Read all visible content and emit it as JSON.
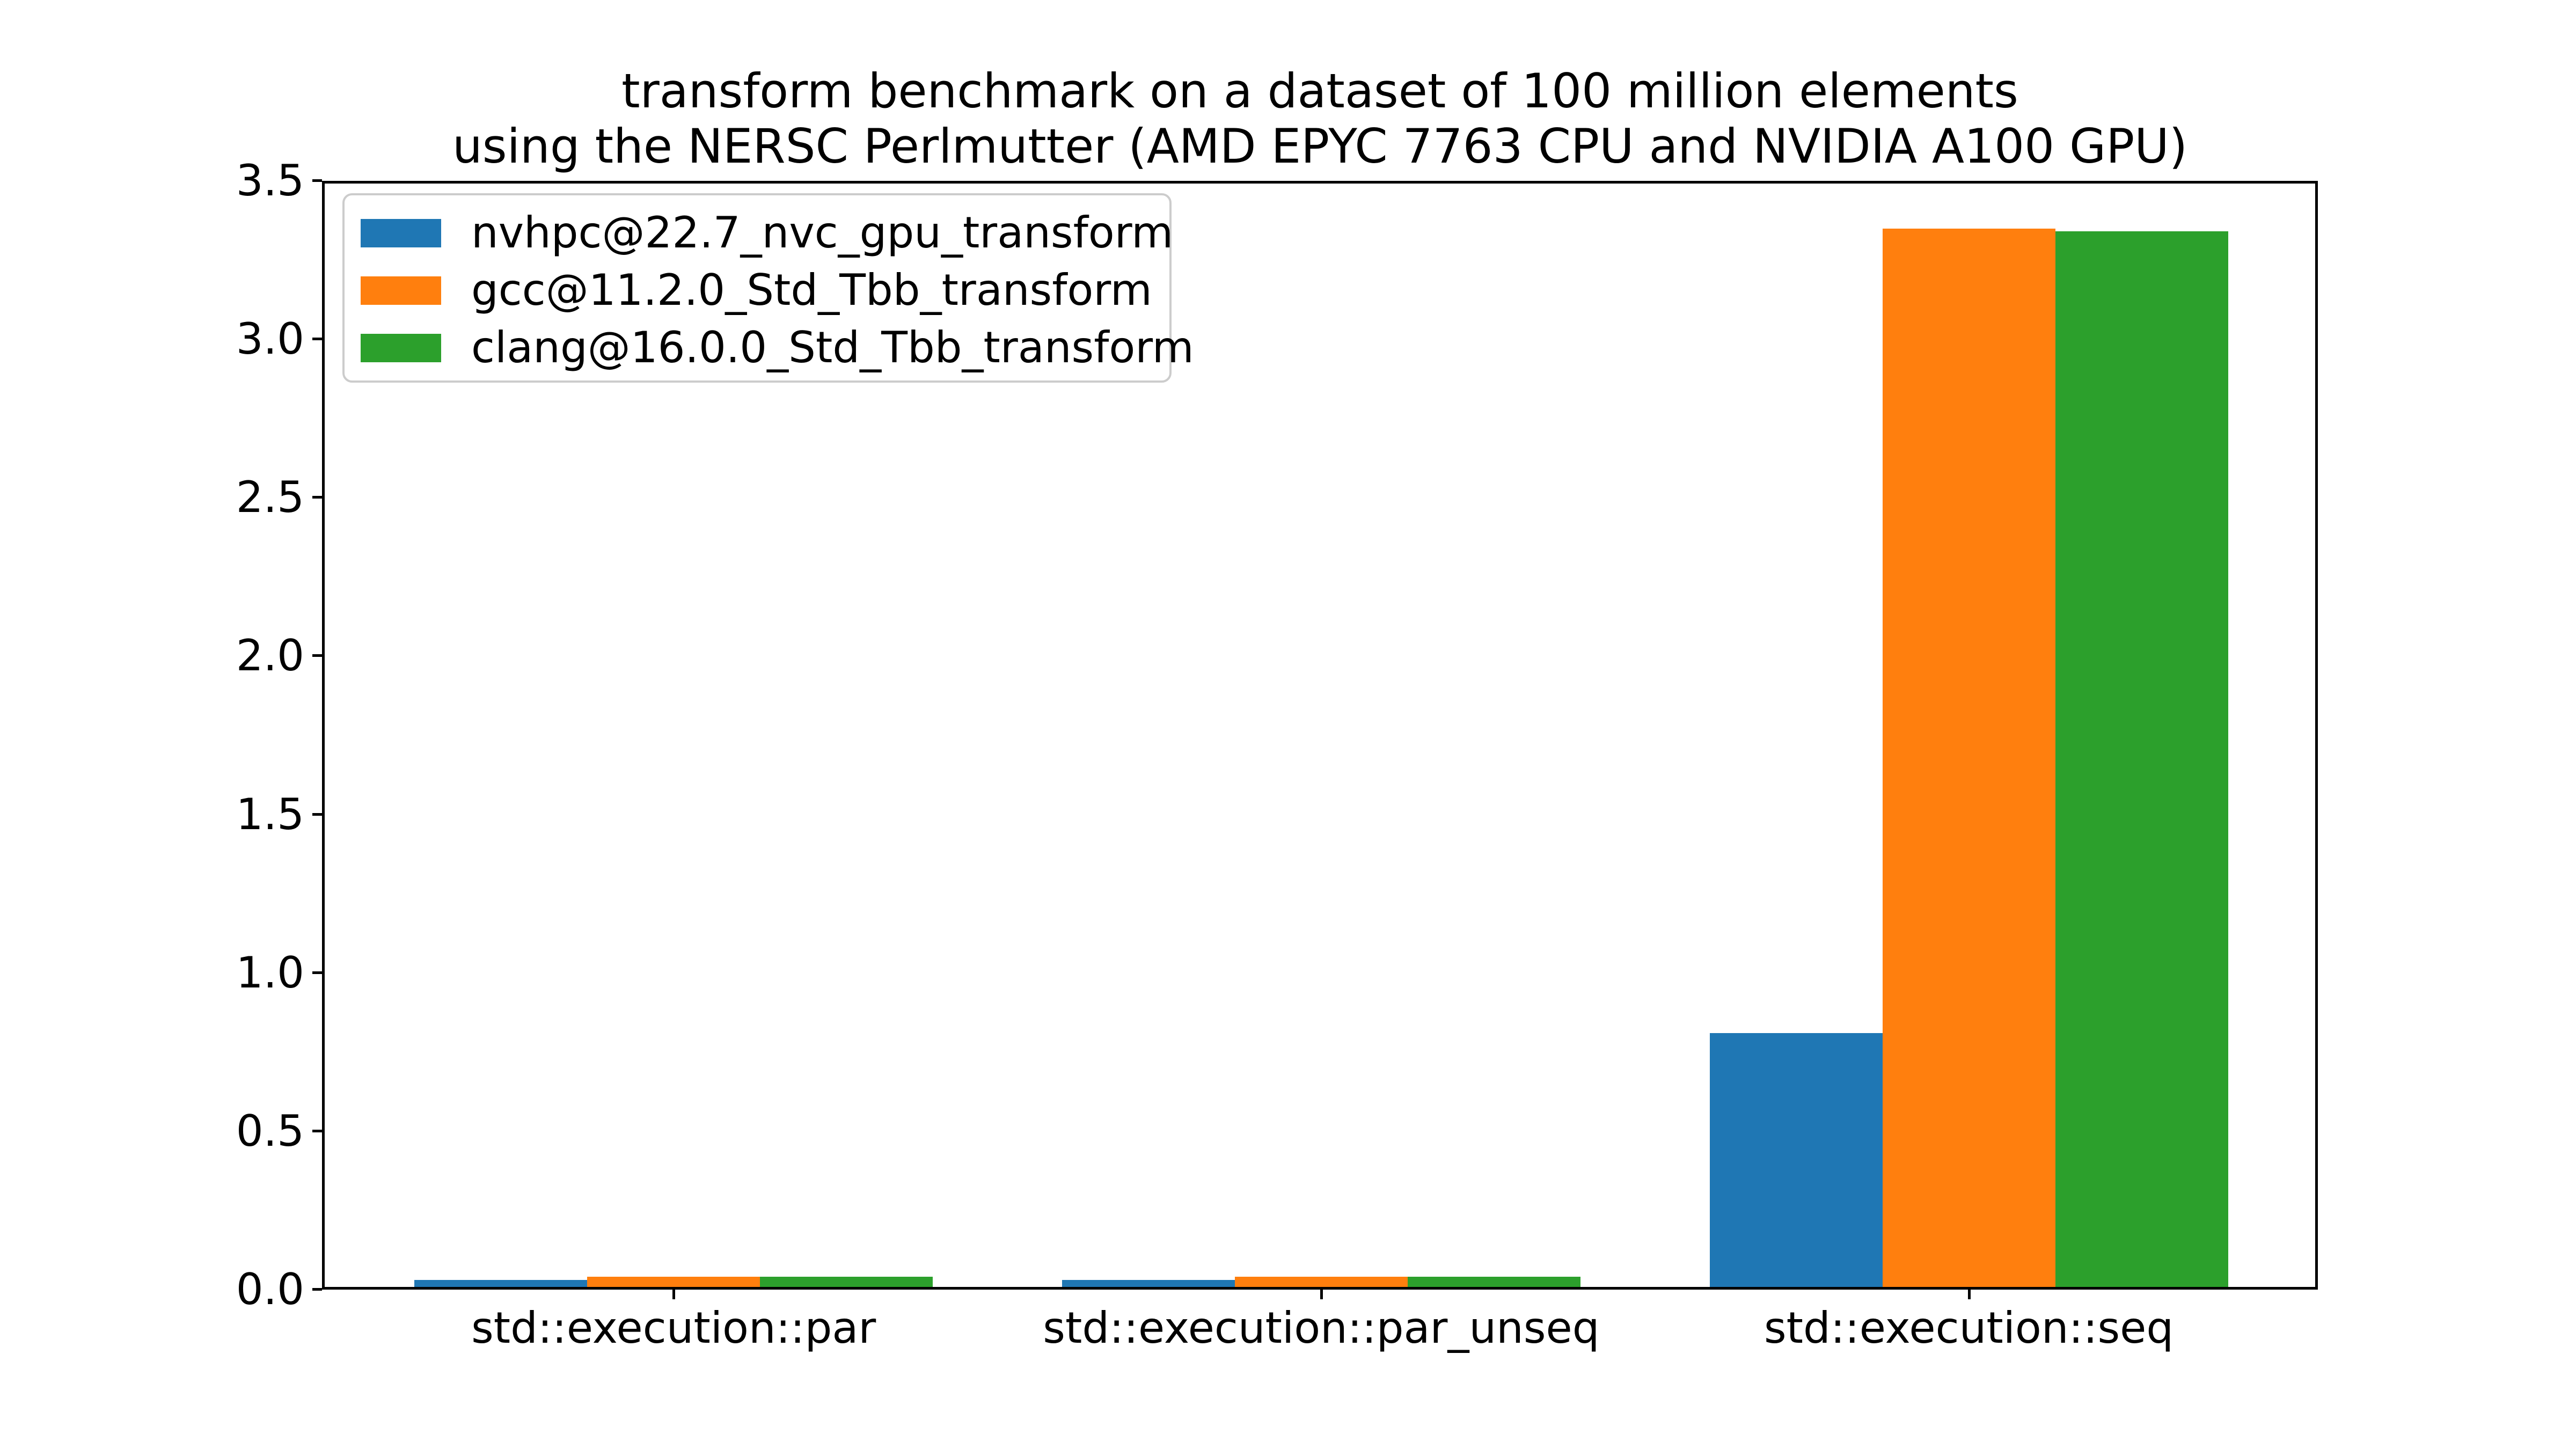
{
  "figure": {
    "title_line1": "transform benchmark on a dataset of 100 million elements",
    "title_line2": "using the NERSC Perlmutter (AMD EPYC 7763 CPU and NVIDIA A100 GPU)"
  },
  "colors": {
    "background": "#ffffff",
    "axis": "#000000",
    "legend_border": "#cccccc",
    "series_blue": "#1f77b4",
    "series_orange": "#ff7f0e",
    "series_green": "#2ca02c"
  },
  "chart_data": {
    "type": "bar",
    "title": "transform benchmark on a dataset of 100 million elements\nusing the NERSC Perlmutter (AMD EPYC 7763 CPU and NVIDIA A100 GPU)",
    "xlabel": "",
    "ylabel": "",
    "categories": [
      "std::execution::par",
      "std::execution::par_unseq",
      "std::execution::seq"
    ],
    "series": [
      {
        "name": "nvhpc@22.7_nvc_gpu_transform",
        "color": "#1f77b4",
        "values": [
          0.03,
          0.03,
          0.81
        ]
      },
      {
        "name": "gcc@11.2.0_Std_Tbb_transform",
        "color": "#ff7f0e",
        "values": [
          0.04,
          0.04,
          3.35
        ]
      },
      {
        "name": "clang@16.0.0_Std_Tbb_transform",
        "color": "#2ca02c",
        "values": [
          0.04,
          0.04,
          3.34
        ]
      }
    ],
    "ylim": [
      0,
      3.5
    ],
    "yticks": [
      0.0,
      0.5,
      1.0,
      1.5,
      2.0,
      2.5,
      3.0,
      3.5
    ],
    "ytick_labels": [
      "0.0",
      "0.5",
      "1.0",
      "1.5",
      "2.0",
      "2.5",
      "3.0",
      "3.5"
    ],
    "legend_position": "upper left",
    "grid": false
  }
}
